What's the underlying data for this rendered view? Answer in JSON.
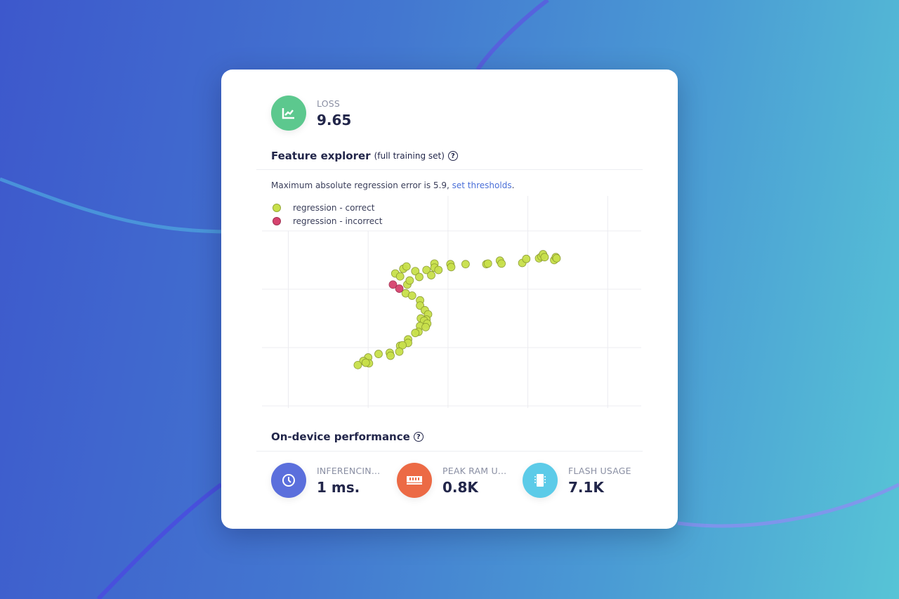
{
  "loss": {
    "label": "LOSS",
    "value": "9.65",
    "icon": "trend-chart-icon",
    "color": "#5cc88e"
  },
  "feature_explorer": {
    "title": "Feature explorer",
    "subtitle": "(full training set)",
    "help_icon": "question-circle-icon",
    "note": "Maximum absolute regression error is 5.9, ",
    "link": "set thresholds",
    "note_end": "."
  },
  "chart_data": {
    "type": "scatter",
    "grid": true,
    "legend_placement": "top-left",
    "xlim": [
      -0.33,
      4.42
    ],
    "ylim": [
      0,
      3.6
    ],
    "series": [
      {
        "name": "regression - correct",
        "color": "#c8e04a",
        "points": [
          [
            1.34,
            2.27
          ],
          [
            1.4,
            2.22
          ],
          [
            1.44,
            2.35
          ],
          [
            1.48,
            2.39
          ],
          [
            1.49,
            2.08
          ],
          [
            1.52,
            2.15
          ],
          [
            1.59,
            2.31
          ],
          [
            1.64,
            2.21
          ],
          [
            1.73,
            2.33
          ],
          [
            1.79,
            2.24
          ],
          [
            1.83,
            2.44
          ],
          [
            1.83,
            2.37
          ],
          [
            1.88,
            2.33
          ],
          [
            2.03,
            2.43
          ],
          [
            2.04,
            2.38
          ],
          [
            2.22,
            2.43
          ],
          [
            2.48,
            2.43
          ],
          [
            2.5,
            2.44
          ],
          [
            2.65,
            2.49
          ],
          [
            2.67,
            2.44
          ],
          [
            2.93,
            2.45
          ],
          [
            2.98,
            2.52
          ],
          [
            3.14,
            2.53
          ],
          [
            3.17,
            2.56
          ],
          [
            3.19,
            2.6
          ],
          [
            3.21,
            2.55
          ],
          [
            3.33,
            2.5
          ],
          [
            3.35,
            2.55
          ],
          [
            3.36,
            2.53
          ],
          [
            1.47,
            1.93
          ],
          [
            1.55,
            1.89
          ],
          [
            1.65,
            1.81
          ],
          [
            1.65,
            1.72
          ],
          [
            1.71,
            1.64
          ],
          [
            1.75,
            1.57
          ],
          [
            1.73,
            1.48
          ],
          [
            1.66,
            1.5
          ],
          [
            1.7,
            1.46
          ],
          [
            1.74,
            1.41
          ],
          [
            1.65,
            1.37
          ],
          [
            1.72,
            1.35
          ],
          [
            1.63,
            1.27
          ],
          [
            1.59,
            1.25
          ],
          [
            1.5,
            1.14
          ],
          [
            1.5,
            1.08
          ],
          [
            1.4,
            1.03
          ],
          [
            1.43,
            1.04
          ],
          [
            1.27,
            0.91
          ],
          [
            1.28,
            0.86
          ],
          [
            1.39,
            0.93
          ],
          [
            1.13,
            0.89
          ],
          [
            1.0,
            0.83
          ],
          [
            1.01,
            0.73
          ],
          [
            0.94,
            0.77
          ],
          [
            0.87,
            0.7
          ],
          [
            0.97,
            0.74
          ]
        ]
      },
      {
        "name": "regression - incorrect",
        "color": "#d6436e",
        "points": [
          [
            1.31,
            2.08
          ],
          [
            1.39,
            2.01
          ]
        ]
      }
    ]
  },
  "performance": {
    "title": "On-device performance",
    "help_icon": "question-circle-icon",
    "metrics": [
      {
        "label": "INFERENCIN...",
        "value": "1 ms.",
        "icon": "clock-icon",
        "color": "#5b6fdc"
      },
      {
        "label": "PEAK RAM U...",
        "value": "0.8K",
        "icon": "ram-icon",
        "color": "#ec6a45"
      },
      {
        "label": "FLASH USAGE",
        "value": "7.1K",
        "icon": "chip-icon",
        "color": "#5ccbe8"
      }
    ]
  }
}
